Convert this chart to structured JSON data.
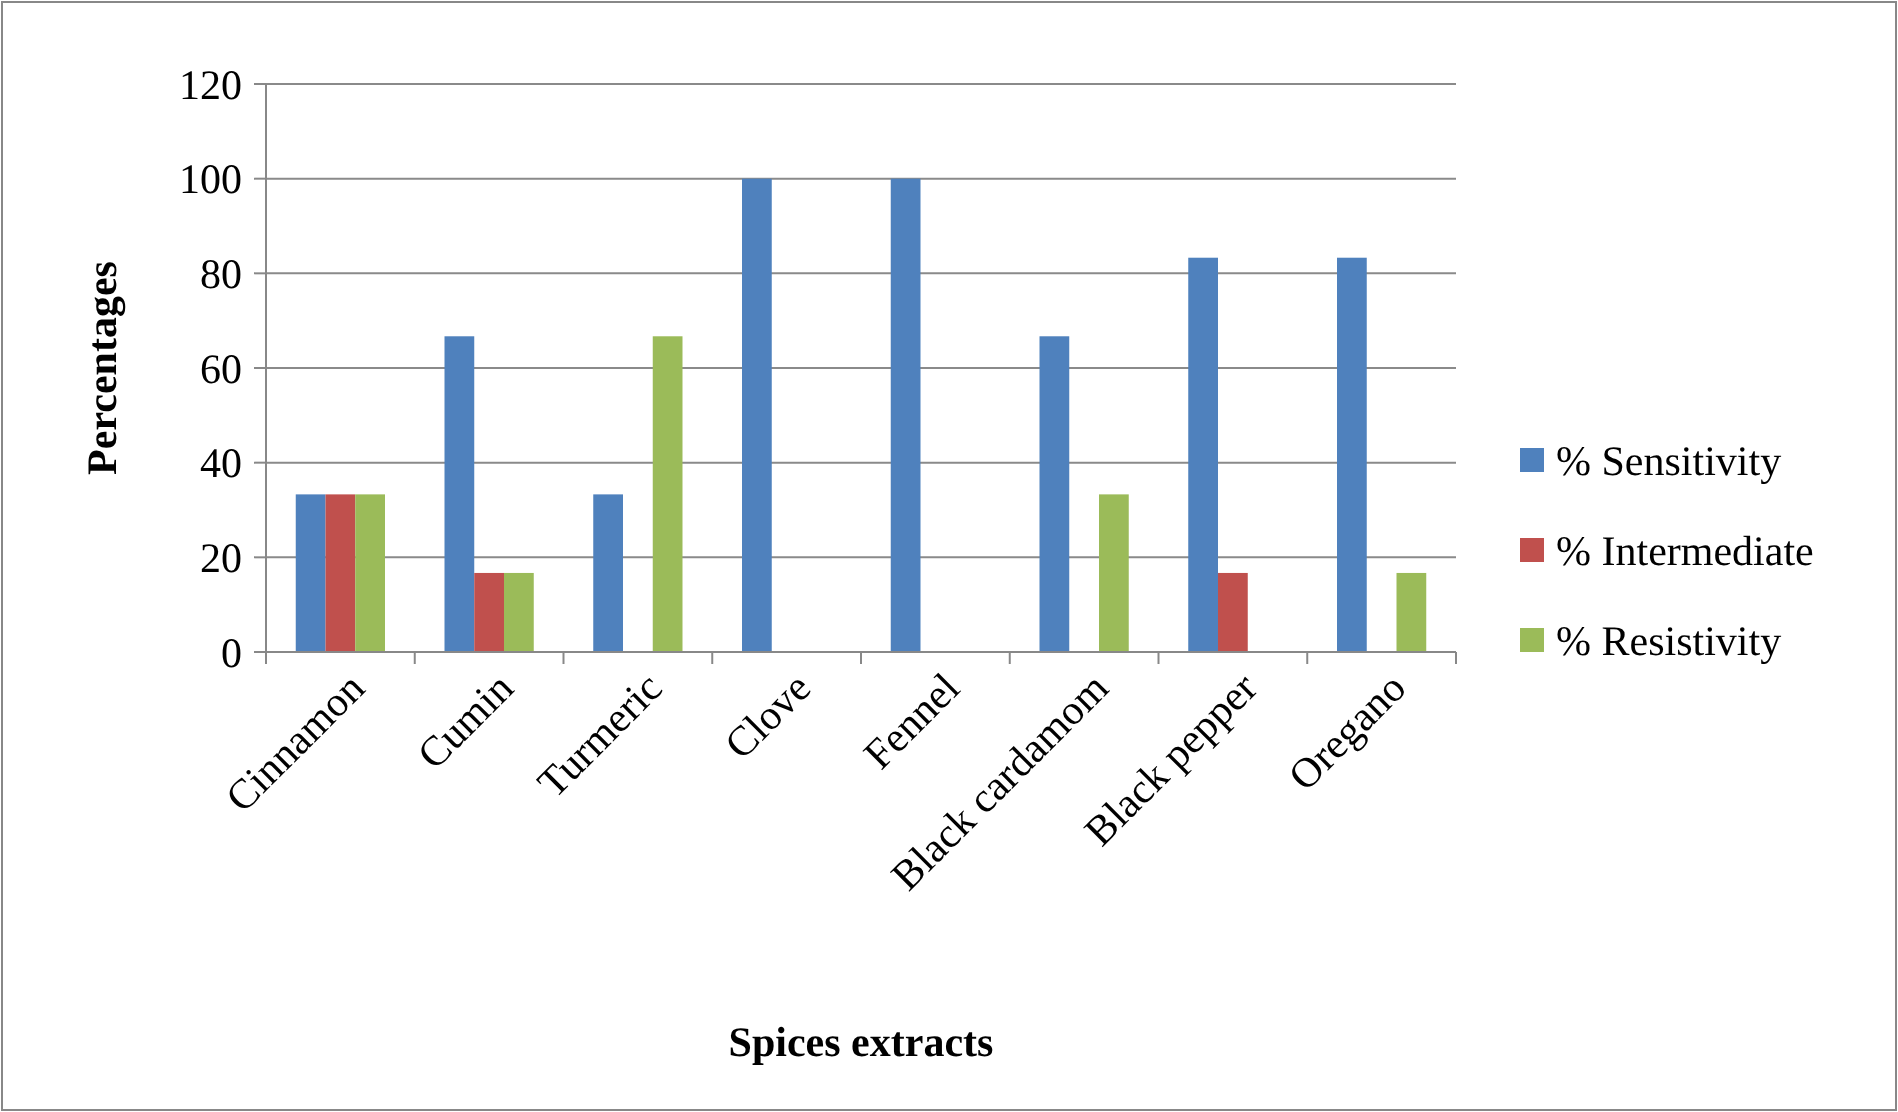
{
  "chart_data": {
    "type": "bar",
    "xlabel": "Spices extracts",
    "ylabel": "Percentages",
    "categories": [
      "Cinnamon",
      "Cumin",
      "Turmeric",
      "Clove",
      "Fennel",
      "Black cardamom",
      "Black pepper",
      "Oregano"
    ],
    "series": [
      {
        "name": "% Sensitivity",
        "color": "#4f81bd",
        "values": [
          33.3,
          66.7,
          33.3,
          100,
          100,
          66.7,
          83.3,
          83.3
        ]
      },
      {
        "name": "% Intermediate",
        "color": "#c0504d",
        "values": [
          33.3,
          16.7,
          0,
          0,
          0,
          0,
          16.7,
          0
        ]
      },
      {
        "name": "% Resistivity",
        "color": "#9bbb59",
        "values": [
          33.3,
          16.7,
          66.7,
          0,
          0,
          33.3,
          0,
          16.7
        ]
      }
    ],
    "ylim": [
      0,
      120
    ],
    "yticks": [
      0,
      20,
      40,
      60,
      80,
      100,
      120
    ],
    "grid": "y",
    "legend": "right"
  }
}
